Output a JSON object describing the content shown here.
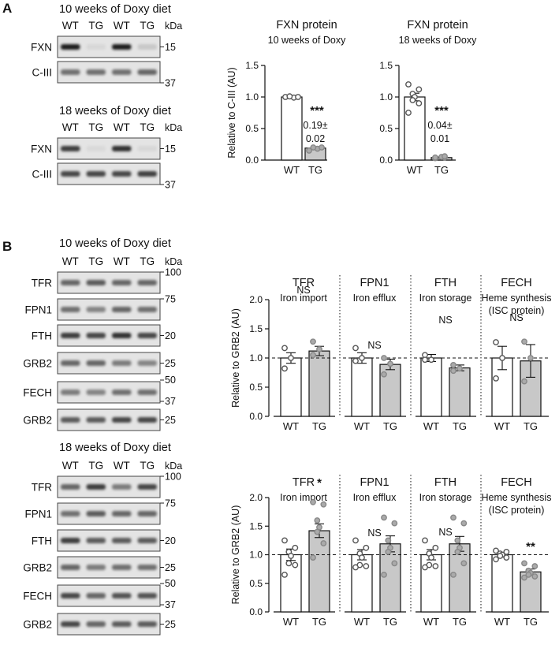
{
  "panel_a": {
    "letter": "A",
    "blots": [
      {
        "title": "10 weeks of Doxy diet",
        "lanes": [
          "WT",
          "TG",
          "WT",
          "TG"
        ],
        "kda": "kDa",
        "rows": [
          {
            "label": "FXN",
            "marker": "15",
            "intensities": [
              0.95,
              0.05,
              0.95,
              0.12
            ]
          },
          {
            "label": "C-III",
            "marker": "37",
            "intensities": [
              0.55,
              0.55,
              0.55,
              0.6
            ]
          }
        ]
      },
      {
        "title": "18 weeks of Doxy diet",
        "lanes": [
          "WT",
          "TG",
          "WT",
          "TG"
        ],
        "kda": "kDa",
        "rows": [
          {
            "label": "FXN",
            "marker": "15",
            "intensities": [
              0.8,
              0.04,
              0.85,
              0.05
            ]
          },
          {
            "label": "C-III",
            "marker": "37",
            "intensities": [
              0.75,
              0.75,
              0.75,
              0.78
            ]
          }
        ]
      }
    ]
  },
  "panel_b": {
    "letter": "B",
    "blots": [
      {
        "title": "10 weeks of Doxy diet",
        "lanes": [
          "WT",
          "TG",
          "WT",
          "TG"
        ],
        "kda": "kDa",
        "rows": [
          {
            "label": "TFR",
            "marker": "100",
            "intensities": [
              0.6,
              0.65,
              0.6,
              0.6
            ]
          },
          {
            "label": "FPN1",
            "marker": "75",
            "intensities": [
              0.55,
              0.45,
              0.6,
              0.55
            ]
          },
          {
            "label": "FTH",
            "marker": "20",
            "intensities": [
              0.8,
              0.75,
              0.85,
              0.75
            ]
          },
          {
            "label": "GRB2",
            "marker": "25",
            "intensities": [
              0.6,
              0.6,
              0.5,
              0.45
            ]
          },
          {
            "label": "FECH",
            "marker": "50",
            "marker2": "37",
            "intensities": [
              0.5,
              0.45,
              0.55,
              0.55
            ]
          },
          {
            "label": "GRB2",
            "marker": "25",
            "intensities": [
              0.65,
              0.65,
              0.75,
              0.75
            ]
          }
        ]
      },
      {
        "title": "18 weeks of Doxy diet",
        "lanes": [
          "WT",
          "TG",
          "WT",
          "TG"
        ],
        "kda": "kDa",
        "rows": [
          {
            "label": "TFR",
            "marker": "100",
            "intensities": [
              0.6,
              0.8,
              0.5,
              0.75
            ]
          },
          {
            "label": "FPN1",
            "marker": "75",
            "intensities": [
              0.55,
              0.65,
              0.6,
              0.6
            ]
          },
          {
            "label": "FTH",
            "marker": "20",
            "intensities": [
              0.8,
              0.65,
              0.65,
              0.65
            ]
          },
          {
            "label": "GRB2",
            "marker": "25",
            "intensities": [
              0.6,
              0.5,
              0.55,
              0.55
            ]
          },
          {
            "label": "FECH",
            "marker": "50",
            "marker2": "37",
            "intensities": [
              0.75,
              0.6,
              0.7,
              0.7
            ]
          },
          {
            "label": "GRB2",
            "marker": "25",
            "intensities": [
              0.75,
              0.6,
              0.65,
              0.65
            ]
          }
        ]
      }
    ]
  },
  "chart_data": [
    {
      "type": "bar",
      "title": "FXN protein",
      "subtitle": "10 weeks of Doxy",
      "ylabel": "Relative to C-III (AU)",
      "ylim": [
        0,
        1.5
      ],
      "yticks": [
        "0.0",
        "0.5",
        "1.0",
        "1.5"
      ],
      "categories": [
        "WT",
        "TG"
      ],
      "values": [
        1.0,
        0.19
      ],
      "errors": [
        0.01,
        0.02
      ],
      "points": [
        [
          1.0,
          0.99,
          1.01,
          1.0
        ],
        [
          0.15,
          0.18,
          0.2,
          0.2
        ]
      ],
      "colors": [
        "#ffffff",
        "#c8c8c8"
      ],
      "annotations": {
        "stars": "***",
        "line1": "0.19±",
        "line2": "0.02"
      }
    },
    {
      "type": "bar",
      "title": "FXN protein",
      "subtitle": "18 weeks of Doxy",
      "ylabel": "",
      "ylim": [
        0,
        1.5
      ],
      "yticks": [
        "0.0",
        "0.5",
        "1.0",
        "1.5"
      ],
      "categories": [
        "WT",
        "TG"
      ],
      "values": [
        1.0,
        0.04
      ],
      "errors": [
        0.06,
        0.01
      ],
      "points": [
        [
          1.2,
          1.12,
          1.05,
          1.0,
          0.95,
          0.9,
          0.75
        ],
        [
          0.03,
          0.04,
          0.05,
          0.06,
          0.04
        ]
      ],
      "colors": [
        "#ffffff",
        "#c8c8c8"
      ],
      "annotations": {
        "stars": "***",
        "line1": "0.04±",
        "line2": "0.01"
      }
    },
    {
      "type": "bar",
      "ylabel": "Relative to GRB2 (AU)",
      "ylim": [
        0,
        2.0
      ],
      "yticks": [
        "0.0",
        "0.5",
        "1.0",
        "1.5",
        "2.0"
      ],
      "groups": [
        {
          "title": "TFR",
          "subtitle": [
            "Iron import"
          ],
          "significance": "NS",
          "categories": [
            "WT",
            "TG"
          ],
          "values": [
            1.0,
            1.12
          ],
          "errors": [
            0.09,
            0.08
          ],
          "points": [
            [
              1.17,
              1.0,
              0.82
            ],
            [
              1.28,
              1.15,
              1.05
            ]
          ]
        },
        {
          "title": "FPN1",
          "subtitle": [
            "Iron efflux"
          ],
          "significance": "NS",
          "categories": [
            "WT",
            "TG"
          ],
          "values": [
            1.0,
            0.89
          ],
          "errors": [
            0.09,
            0.09
          ],
          "points": [
            [
              1.17,
              1.0,
              0.95
            ],
            [
              1.0,
              0.9,
              0.72
            ]
          ]
        },
        {
          "title": "FTH",
          "subtitle": [
            "Iron storage"
          ],
          "significance": "NS",
          "categories": [
            "WT",
            "TG"
          ],
          "values": [
            1.0,
            0.83
          ],
          "errors": [
            0.06,
            0.05
          ],
          "points": [
            [
              1.05,
              0.97,
              0.97
            ],
            [
              0.88,
              0.82,
              0.78
            ]
          ]
        },
        {
          "title": "FECH",
          "subtitle": [
            "Heme synthesis",
            "(ISC protein)"
          ],
          "significance": "NS",
          "categories": [
            "WT",
            "TG"
          ],
          "values": [
            1.0,
            0.95
          ],
          "errors": [
            0.2,
            0.28
          ],
          "points": [
            [
              1.27,
              1.0,
              0.65
            ],
            [
              1.28,
              1.0,
              0.6
            ]
          ]
        }
      ],
      "reference_line": 1.0,
      "colors": [
        "#ffffff",
        "#c8c8c8"
      ]
    },
    {
      "type": "bar",
      "ylabel": "Relative to GRB2 (AU)",
      "ylim": [
        0,
        2.0
      ],
      "yticks": [
        "0.0",
        "0.5",
        "1.0",
        "1.5",
        "2.0"
      ],
      "groups": [
        {
          "title": "TFR",
          "subtitle": [
            "Iron import"
          ],
          "significance": "*",
          "categories": [
            "WT",
            "TG"
          ],
          "values": [
            1.0,
            1.42
          ],
          "errors": [
            0.1,
            0.12
          ],
          "points": [
            [
              1.25,
              1.12,
              1.05,
              0.98,
              0.85,
              0.82,
              0.65
            ],
            [
              1.92,
              1.88,
              1.6,
              1.48,
              1.4,
              1.2,
              0.95
            ]
          ]
        },
        {
          "title": "FPN1",
          "subtitle": [
            "Iron efflux"
          ],
          "significance": "NS",
          "categories": [
            "WT",
            "TG"
          ],
          "values": [
            1.0,
            1.19
          ],
          "errors": [
            0.09,
            0.14
          ],
          "points": [
            [
              1.25,
              1.12,
              1.02,
              0.95,
              0.82,
              0.8,
              0.78
            ],
            [
              1.65,
              1.55,
              1.25,
              1.12,
              1.05,
              0.85,
              0.65
            ]
          ]
        },
        {
          "title": "FTH",
          "subtitle": [
            "Iron storage"
          ],
          "significance": "NS",
          "categories": [
            "WT",
            "TG"
          ],
          "values": [
            1.0,
            1.19
          ],
          "errors": [
            0.09,
            0.13
          ],
          "points": [
            [
              1.25,
              1.12,
              1.02,
              0.95,
              0.82,
              0.8,
              0.78
            ],
            [
              1.65,
              1.55,
              1.25,
              1.12,
              1.05,
              0.85,
              0.65
            ]
          ]
        },
        {
          "title": "FECH",
          "subtitle": [
            "Heme synthesis",
            "(ISC protein)"
          ],
          "significance": "**",
          "categories": [
            "WT",
            "TG"
          ],
          "values": [
            1.0,
            0.7
          ],
          "errors": [
            0.03,
            0.05
          ],
          "points": [
            [
              1.07,
              1.05,
              1.02,
              1.0,
              0.98,
              0.95,
              0.92
            ],
            [
              0.85,
              0.8,
              0.72,
              0.68,
              0.65,
              0.62,
              0.6
            ]
          ]
        }
      ],
      "reference_line": 1.0,
      "colors": [
        "#ffffff",
        "#c8c8c8"
      ]
    }
  ]
}
